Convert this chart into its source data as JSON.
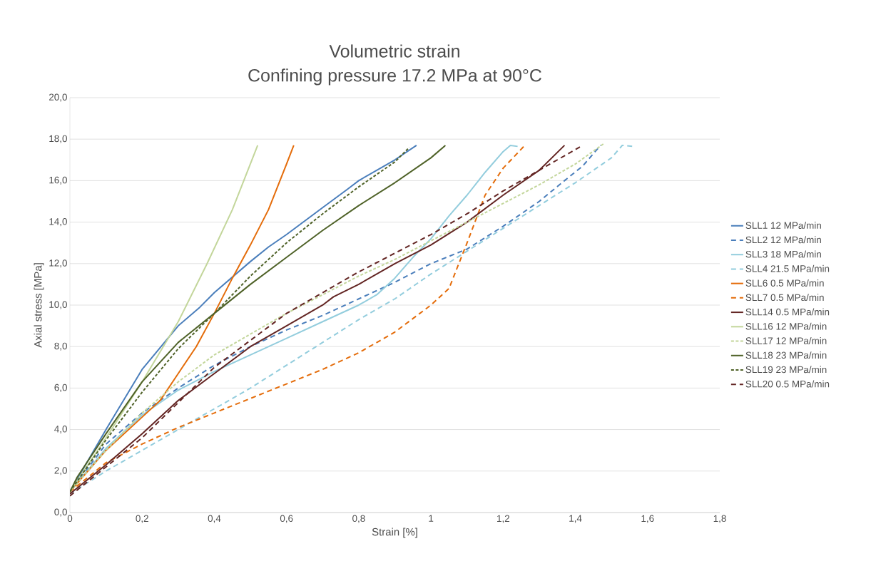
{
  "chart_data": {
    "type": "line",
    "title": "Volumetric strain",
    "subtitle": "Confining pressure 17.2 MPa at 90°C",
    "xlabel": "Strain [%]",
    "ylabel": "Axial stress [MPa]",
    "xlim": [
      0,
      1.8
    ],
    "ylim": [
      0,
      20
    ],
    "xticks": [
      0,
      {
        "value": 0.2,
        "label": "0,2"
      },
      {
        "value": 0.4,
        "label": "0,4"
      },
      {
        "value": 0.6,
        "label": "0,6"
      },
      {
        "value": 0.8,
        "label": "0,8"
      },
      1,
      {
        "value": 1.2,
        "label": "1,2"
      },
      {
        "value": 1.4,
        "label": "1,4"
      },
      {
        "value": 1.6,
        "label": "1,6"
      },
      {
        "value": 1.8,
        "label": "1,8"
      }
    ],
    "yticks": [
      {
        "value": 0,
        "label": "0,0"
      },
      {
        "value": 2,
        "label": "2,0"
      },
      {
        "value": 4,
        "label": "4,0"
      },
      {
        "value": 6,
        "label": "6,0"
      },
      {
        "value": 8,
        "label": "8,0"
      },
      {
        "value": 10,
        "label": "10,0"
      },
      {
        "value": 12,
        "label": "12,0"
      },
      {
        "value": 14,
        "label": "14,0"
      },
      {
        "value": 16,
        "label": "16,0"
      },
      {
        "value": 18,
        "label": "18,0"
      },
      {
        "value": 20,
        "label": "20,0"
      }
    ],
    "grid": "y",
    "legend": "right",
    "marker": "none",
    "series": [
      {
        "name": "SLL1 12 MPa/min",
        "color": "#4a7ebb",
        "line_style": "solid",
        "x": [
          0,
          0.1,
          0.2,
          0.3,
          0.36,
          0.4,
          0.5,
          0.55,
          0.6,
          0.7,
          0.77,
          0.8,
          0.9,
          0.96
        ],
        "values": [
          1.0,
          4.0,
          6.9,
          9.0,
          9.9,
          10.6,
          12.1,
          12.8,
          13.4,
          14.7,
          15.6,
          16.0,
          17.0,
          17.7
        ]
      },
      {
        "name": "SLL2 12 MPa/min",
        "color": "#4a7ebb",
        "line_style": "dashed",
        "x": [
          0,
          0.1,
          0.2,
          0.3,
          0.4,
          0.5,
          0.6,
          0.7,
          0.8,
          0.9,
          1.0,
          1.1,
          1.2,
          1.3,
          1.37,
          1.42,
          1.47
        ],
        "values": [
          1.0,
          3.3,
          4.8,
          6.0,
          7.1,
          8.0,
          8.8,
          9.5,
          10.3,
          11.1,
          12.0,
          12.7,
          13.8,
          15.0,
          16.0,
          16.7,
          17.7
        ]
      },
      {
        "name": "SLL3 18 MPa/min",
        "color": "#93cddd",
        "line_style": "solid",
        "x": [
          0,
          0.1,
          0.2,
          0.3,
          0.4,
          0.5,
          0.6,
          0.7,
          0.8,
          0.85,
          0.9,
          0.95,
          1.0,
          1.05,
          1.1,
          1.15,
          1.2,
          1.22,
          1.24
        ],
        "values": [
          1.0,
          3.1,
          4.7,
          5.9,
          6.8,
          7.6,
          8.4,
          9.2,
          10.0,
          10.5,
          11.3,
          12.3,
          13.2,
          14.3,
          15.3,
          16.4,
          17.4,
          17.7,
          17.65
        ]
      },
      {
        "name": "SLL4 21.5 MPa/min",
        "color": "#93cddd",
        "line_style": "dashed",
        "x": [
          0,
          0.1,
          0.2,
          0.3,
          0.4,
          0.5,
          0.6,
          0.7,
          0.8,
          0.9,
          1.0,
          1.1,
          1.2,
          1.3,
          1.4,
          1.5,
          1.53,
          1.56
        ],
        "values": [
          0.9,
          2.0,
          3.0,
          4.0,
          5.0,
          6.0,
          7.1,
          8.2,
          9.3,
          10.3,
          11.5,
          12.6,
          13.7,
          14.8,
          15.9,
          17.1,
          17.7,
          17.65
        ]
      },
      {
        "name": "SLL6 0.5 MPa/min",
        "color": "#e46c0a",
        "line_style": "solid",
        "x": [
          0,
          0.1,
          0.2,
          0.25,
          0.3,
          0.35,
          0.4,
          0.45,
          0.5,
          0.55,
          0.6,
          0.62
        ],
        "values": [
          1.0,
          3.0,
          4.6,
          5.4,
          6.7,
          8.0,
          9.6,
          11.3,
          12.9,
          14.6,
          16.8,
          17.7
        ]
      },
      {
        "name": "SLL7 0.5 MPa/min",
        "color": "#e46c0a",
        "line_style": "dashed",
        "x": [
          0,
          0.1,
          0.2,
          0.3,
          0.4,
          0.5,
          0.6,
          0.7,
          0.8,
          0.9,
          1.0,
          1.05,
          1.1,
          1.15,
          1.2,
          1.26
        ],
        "values": [
          1.0,
          2.4,
          3.3,
          4.1,
          4.8,
          5.5,
          6.2,
          6.9,
          7.7,
          8.7,
          10.0,
          10.8,
          13.0,
          15.3,
          16.6,
          17.7
        ]
      },
      {
        "name": "SLL14 0.5 MPa/min",
        "color": "#632523",
        "line_style": "solid",
        "x": [
          0,
          0.1,
          0.2,
          0.3,
          0.4,
          0.5,
          0.6,
          0.7,
          0.73,
          0.8,
          0.9,
          1.0,
          1.1,
          1.2,
          1.3,
          1.37
        ],
        "values": [
          0.9,
          2.3,
          3.8,
          5.4,
          6.7,
          8.0,
          9.0,
          10.0,
          10.4,
          11.0,
          12.0,
          12.9,
          14.0,
          15.3,
          16.5,
          17.7
        ]
      },
      {
        "name": "SLL16 12 MPa/min",
        "color": "#c3d69b",
        "line_style": "solid",
        "x": [
          0,
          0.1,
          0.2,
          0.3,
          0.38,
          0.45,
          0.52
        ],
        "values": [
          1.0,
          3.6,
          6.3,
          9.2,
          12.0,
          14.6,
          17.7
        ]
      },
      {
        "name": "SLL17 12 MPa/min",
        "color": "#c3d69b",
        "line_style": "dotted",
        "x": [
          0,
          0.1,
          0.2,
          0.3,
          0.4,
          0.5,
          0.6,
          0.7,
          0.8,
          0.9,
          1.0,
          1.1,
          1.2,
          1.3,
          1.4,
          1.48
        ],
        "values": [
          1.0,
          3.0,
          4.8,
          6.3,
          7.6,
          8.6,
          9.6,
          10.5,
          11.4,
          12.2,
          13.1,
          14.0,
          14.9,
          15.8,
          16.8,
          17.8
        ]
      },
      {
        "name": "SLL18 23 MPa/min",
        "color": "#4f6228",
        "line_style": "solid",
        "x": [
          0,
          0.02,
          0.1,
          0.2,
          0.3,
          0.4,
          0.5,
          0.6,
          0.7,
          0.8,
          0.9,
          1.0,
          1.04
        ],
        "values": [
          1.0,
          1.7,
          3.8,
          6.3,
          8.2,
          9.6,
          11.0,
          12.3,
          13.6,
          14.8,
          15.9,
          17.1,
          17.7
        ]
      },
      {
        "name": "SLL19 23 MPa/min",
        "color": "#4f6228",
        "line_style": "dotted",
        "x": [
          0,
          0.1,
          0.2,
          0.3,
          0.4,
          0.5,
          0.6,
          0.7,
          0.8,
          0.9,
          0.94
        ],
        "values": [
          1.0,
          3.5,
          5.8,
          7.9,
          9.6,
          11.4,
          13.0,
          14.4,
          15.7,
          16.9,
          17.6
        ]
      },
      {
        "name": "SLL20 0.5 MPa/min",
        "color": "#632523",
        "line_style": "dashed",
        "x": [
          0,
          0.1,
          0.2,
          0.3,
          0.4,
          0.5,
          0.6,
          0.7,
          0.8,
          0.9,
          1.0,
          1.1,
          1.2,
          1.3,
          1.42
        ],
        "values": [
          0.8,
          2.2,
          3.6,
          5.3,
          7.0,
          8.3,
          9.6,
          10.6,
          11.6,
          12.5,
          13.4,
          14.4,
          15.5,
          16.5,
          17.7
        ]
      }
    ]
  }
}
